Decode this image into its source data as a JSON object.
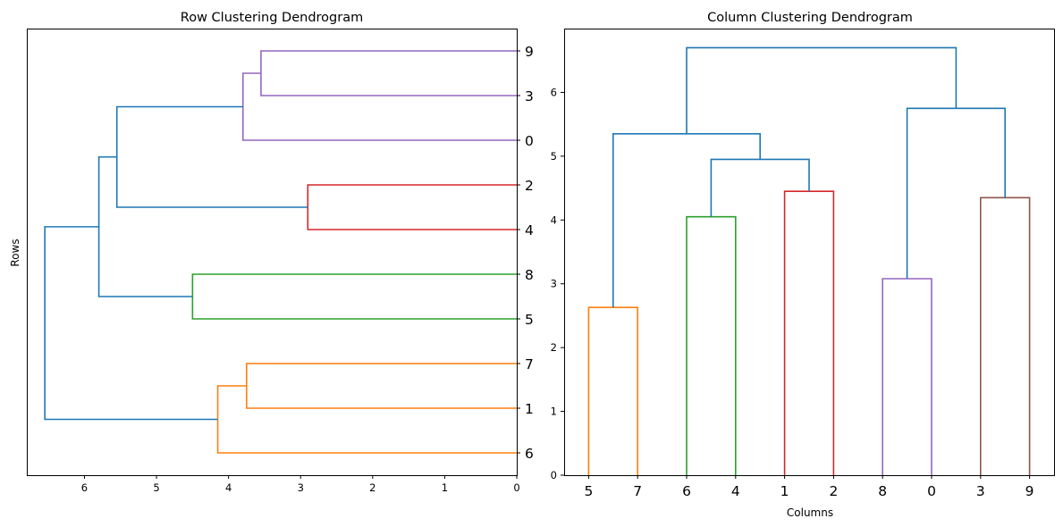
{
  "chart_data": [
    {
      "type": "dendrogram",
      "orientation": "left",
      "title": "Row Clustering Dendrogram",
      "xlabel": "",
      "ylabel": "Rows",
      "xlim": [
        6.8,
        0
      ],
      "xticks": [
        "6",
        "5",
        "4",
        "3",
        "2",
        "1",
        "0"
      ],
      "leaf_order_top_to_bottom": [
        "9",
        "3",
        "0",
        "2",
        "4",
        "8",
        "5",
        "7",
        "1",
        "6"
      ],
      "links": [
        {
          "from": "9",
          "to": "3",
          "height": 3.55,
          "color": "#9467bd"
        },
        {
          "from": "(9,3)",
          "to": "0",
          "height": 3.8,
          "color": "#9467bd"
        },
        {
          "from": "2",
          "to": "4",
          "height": 2.9,
          "color": "#d62728"
        },
        {
          "from": "(9,3,0)",
          "to": "(2,4)",
          "height": 5.55,
          "color": "#1f77b4"
        },
        {
          "from": "8",
          "to": "5",
          "height": 4.5,
          "color": "#2ca02c"
        },
        {
          "from": "(9,3,0,2,4)",
          "to": "(8,5)",
          "height": 5.8,
          "color": "#1f77b4"
        },
        {
          "from": "7",
          "to": "1",
          "height": 3.75,
          "color": "#ff7f0e"
        },
        {
          "from": "(7,1)",
          "to": "6",
          "height": 4.15,
          "color": "#ff7f0e"
        },
        {
          "from": "(9,3,0,2,4,8,5)",
          "to": "(7,1,6)",
          "height": 6.55,
          "color": "#1f77b4"
        }
      ],
      "grid": false
    },
    {
      "type": "dendrogram",
      "orientation": "top",
      "title": "Column Clustering Dendrogram",
      "xlabel": "Columns",
      "ylabel": "",
      "ylim": [
        0,
        7
      ],
      "yticks": [
        "0",
        "1",
        "2",
        "3",
        "4",
        "5",
        "6"
      ],
      "leaf_order_left_to_right": [
        "5",
        "7",
        "6",
        "4",
        "1",
        "2",
        "8",
        "0",
        "3",
        "9"
      ],
      "links": [
        {
          "from": "5",
          "to": "7",
          "height": 2.63,
          "color": "#ff7f0e"
        },
        {
          "from": "6",
          "to": "4",
          "height": 4.05,
          "color": "#2ca02c"
        },
        {
          "from": "1",
          "to": "2",
          "height": 4.45,
          "color": "#d62728"
        },
        {
          "from": "(6,4)",
          "to": "(1,2)",
          "height": 4.95,
          "color": "#1f77b4"
        },
        {
          "from": "(5,7)",
          "to": "(6,4,1,2)",
          "height": 5.35,
          "color": "#1f77b4"
        },
        {
          "from": "8",
          "to": "0",
          "height": 3.08,
          "color": "#9467bd"
        },
        {
          "from": "3",
          "to": "9",
          "height": 4.35,
          "color": "#8c564b"
        },
        {
          "from": "(8,0)",
          "to": "(3,9)",
          "height": 5.75,
          "color": "#1f77b4"
        },
        {
          "from": "(5,7,6,4,1,2)",
          "to": "(8,0,3,9)",
          "height": 6.7,
          "color": "#1f77b4"
        }
      ],
      "grid": false
    }
  ]
}
